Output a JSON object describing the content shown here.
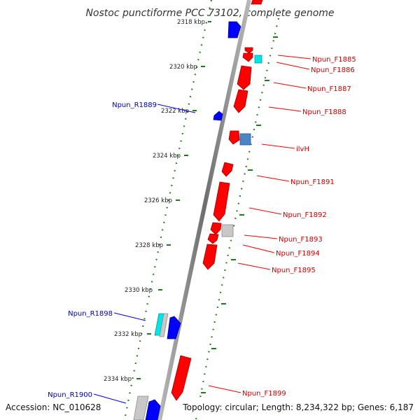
{
  "title": "Nostoc punctiforme PCC 73102, complete genome",
  "footer": {
    "accession": "Accession: NC_010628",
    "topology": "Topology: circular; Length: 8,234,322 bp; Genes: 6,187"
  },
  "colors": {
    "forward": "#ff0000",
    "reverse": "#0000ff",
    "rna": "#00e5e5",
    "pseudo": "#c8c8c8",
    "other": "#4a86c6",
    "ruler": "#1f7a1f",
    "backbone": "#808080"
  },
  "ruler": {
    "unit": "kbp",
    "ticks": [
      "2318 kbp",
      "2320 kbp",
      "2322 kbp",
      "2324 kbp",
      "2326 kbp",
      "2328 kbp",
      "2330 kbp",
      "2332 kbp",
      "2334 kbp"
    ]
  },
  "labels_forward": [
    "Npun_F1885",
    "Npun_F1886",
    "Npun_F1887",
    "Npun_F1888",
    "ilvH",
    "Npun_F1891",
    "Npun_F1892",
    "Npun_F1893",
    "Npun_F1894",
    "Npun_F1895",
    "Npun_F1899"
  ],
  "labels_reverse": [
    "Npun_R1889",
    "Npun_R1898",
    "Npun_R1900"
  ]
}
